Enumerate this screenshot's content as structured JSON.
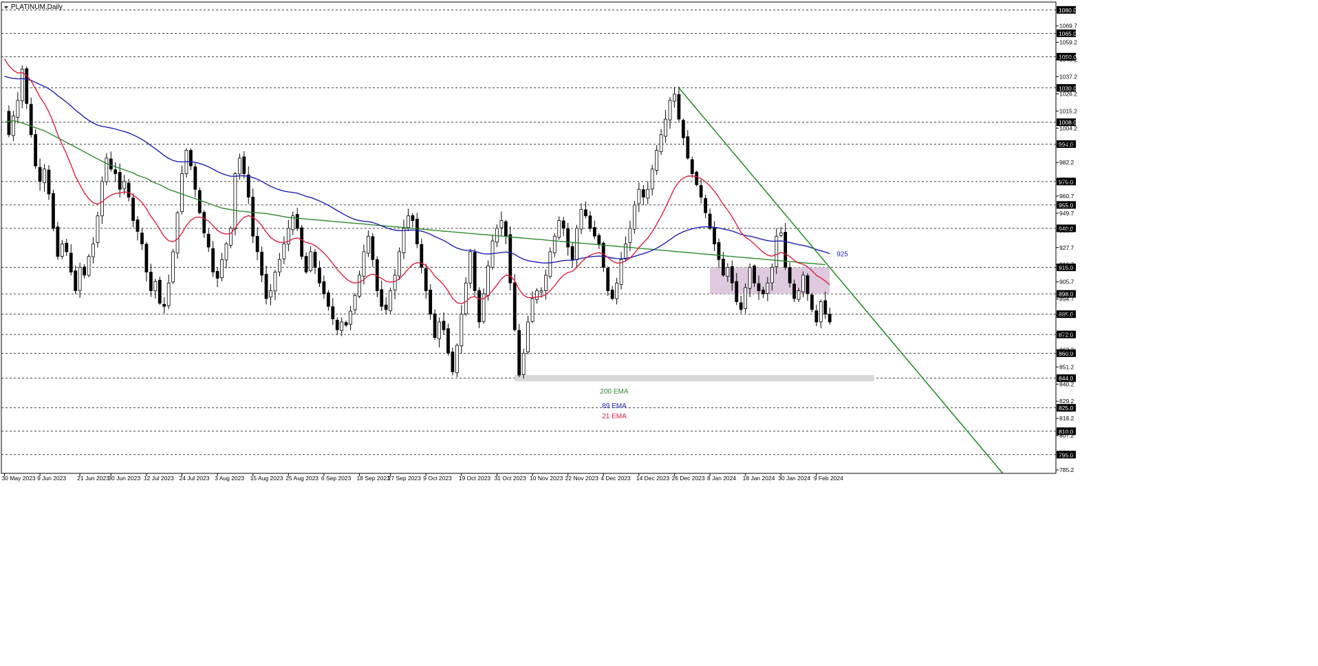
{
  "chart_data": {
    "type": "candlestick",
    "title": "PLATINUM,Daily",
    "y_axis_ticks": [
      1069.7,
      1059.2,
      1048.2,
      1037.2,
      1026.2,
      1015.2,
      1004.2,
      993.2,
      982.2,
      971.2,
      960.7,
      949.7,
      938.7,
      927.7,
      916.7,
      905.7,
      894.7,
      884.2,
      873.2,
      862.2,
      851.2,
      840.2,
      829.2,
      818.2,
      807.2,
      796.2,
      785.2
    ],
    "ylim": [
      783,
      1085
    ],
    "price_levels": [
      1080.0,
      1065.0,
      1050.0,
      1030.0,
      1008.0,
      994.0,
      970.0,
      955.0,
      940.0,
      915.0,
      898.0,
      885.0,
      872.0,
      860.0,
      844.0,
      825.0,
      810.0,
      795.0
    ],
    "x_labels": [
      {
        "label": "30 May 2023",
        "index": 0
      },
      {
        "label": "9 Jun 2023",
        "index": 8
      },
      {
        "label": "21 Jun 2023",
        "index": 17
      },
      {
        "label": "30 Jun 2023",
        "index": 24
      },
      {
        "label": "12 Jul 2023",
        "index": 32
      },
      {
        "label": "24 Jul 2023",
        "index": 40
      },
      {
        "label": "3 Aug 2023",
        "index": 48
      },
      {
        "label": "15 Aug 2023",
        "index": 56
      },
      {
        "label": "25 Aug 2023",
        "index": 64
      },
      {
        "label": "6 Sep 2023",
        "index": 72
      },
      {
        "label": "18 Sep 2023",
        "index": 80
      },
      {
        "label": "27 Sep 2023",
        "index": 87
      },
      {
        "label": "9 Oct 2023",
        "index": 95
      },
      {
        "label": "19 Oct 2023",
        "index": 103
      },
      {
        "label": "31 Oct 2023",
        "index": 111
      },
      {
        "label": "10 Nov 2023",
        "index": 119
      },
      {
        "label": "22 Nov 2023",
        "index": 127
      },
      {
        "label": "4 Dec 2023",
        "index": 135
      },
      {
        "label": "14 Dec 2023",
        "index": 143
      },
      {
        "label": "26 Dec 2023",
        "index": 151
      },
      {
        "label": "8 Jan 2024",
        "index": 159
      },
      {
        "label": "18 Jan 2024",
        "index": 167
      },
      {
        "label": "30 Jan 2024",
        "index": 175
      },
      {
        "label": "9 Feb 2024",
        "index": 183
      }
    ],
    "close_path": [
      1015,
      1000,
      1012,
      1022,
      1042,
      1020,
      1000,
      980,
      970,
      978,
      962,
      940,
      922,
      930,
      925,
      912,
      900,
      915,
      910,
      922,
      930,
      948,
      970,
      985,
      978,
      975,
      965,
      970,
      960,
      945,
      938,
      930,
      912,
      900,
      906,
      892,
      890,
      905,
      925,
      950,
      975,
      990,
      980,
      965,
      950,
      937,
      928,
      912,
      908,
      920,
      930,
      940,
      975,
      985,
      975,
      960,
      935,
      925,
      910,
      895,
      900,
      912,
      920,
      930,
      940,
      948,
      940,
      922,
      912,
      925,
      915,
      905,
      898,
      890,
      882,
      875,
      880,
      878,
      887,
      897,
      910,
      925,
      935,
      920,
      900,
      890,
      888,
      900,
      910,
      925,
      940,
      948,
      945,
      930,
      915,
      900,
      885,
      870,
      880,
      875,
      860,
      848,
      865,
      885,
      905,
      925,
      900,
      880,
      898,
      916,
      932,
      940,
      945,
      935,
      905,
      875,
      846,
      860,
      880,
      895,
      900,
      900,
      910,
      925,
      935,
      945,
      940,
      928,
      920,
      940,
      952,
      948,
      940,
      935,
      930,
      915,
      900,
      895,
      905,
      920,
      930,
      940,
      955,
      965,
      960,
      965,
      978,
      990,
      1000,
      1010,
      1022,
      1026,
      1010,
      998,
      985,
      975,
      968,
      960,
      950,
      940,
      930,
      920,
      910,
      915,
      905,
      893,
      888,
      902,
      915,
      905,
      900,
      898,
      905,
      915,
      935,
      937,
      915,
      905,
      895,
      900,
      910,
      898,
      888,
      880,
      893,
      885,
      880
    ],
    "series": [
      {
        "name": "200 EMA",
        "color": "#2e8b2e",
        "values": [
          1008,
          1008.5,
          1009,
          1008.5,
          1007.5,
          1006.5,
          1005.5,
          1004.5,
          1003.5,
          1002.5,
          1001,
          999.5,
          998,
          996.5,
          995,
          993.5,
          992,
          990.5,
          989,
          987.5,
          986,
          984.5,
          983,
          981.5,
          980.5,
          979.5,
          978.5,
          977.5,
          976.5,
          975.5,
          974,
          973,
          972,
          970.5,
          969,
          968,
          966.5,
          965,
          964,
          963,
          962,
          961,
          960,
          959,
          958,
          957,
          956,
          955,
          954,
          953,
          952.5,
          952,
          951.5,
          951,
          950.8,
          950.5,
          950.2,
          950,
          949.7,
          949.5,
          949,
          948.5,
          948,
          947.5,
          947,
          946.7,
          946.5,
          946.2,
          946,
          945.7,
          945.5,
          945.2,
          945,
          944.7,
          944.5,
          944.2,
          944,
          943.7,
          943.5,
          943.2,
          943,
          942.8,
          942.5,
          942.2,
          942,
          941.8,
          941.5,
          941.3,
          941,
          940.8,
          940.5,
          940.3,
          940,
          939.8,
          939.5,
          939.3,
          939,
          938.7,
          938.5,
          938.2,
          938,
          937.7,
          937.5,
          937.2,
          937,
          936.7,
          936.5,
          936.2,
          936,
          935.8,
          935.5,
          935.3,
          935,
          934.8,
          934.5,
          934.2,
          934,
          933.7,
          933.5,
          933.2,
          933,
          932.8,
          932.5,
          932.2,
          932,
          931.7,
          931.5,
          931.2,
          931,
          930.7,
          930.5,
          930.2,
          930,
          929.8,
          929.5,
          929.2,
          929,
          928.8,
          928.5,
          928.2,
          928,
          927.8,
          927.5,
          927.2,
          927,
          926.8,
          926.5,
          926.2,
          926,
          925.8,
          925.5,
          925.2,
          925,
          924.8,
          924.5,
          924.2,
          924,
          923.7,
          923.5,
          923.2,
          923,
          922.7,
          922.5,
          922.2,
          922,
          921.7,
          921.5,
          921.2,
          921,
          920.7,
          920.5,
          920.2,
          920,
          919.7,
          919.5,
          919.2,
          919,
          918.7,
          918.5,
          918.2,
          918,
          917.7,
          917.5,
          917.2,
          917,
          916.7
        ]
      },
      {
        "name": "89 EMA",
        "color": "#1e1eb4",
        "values": []
      },
      {
        "name": "21 EMA",
        "color": "#dc1e3c",
        "values": []
      }
    ],
    "ema_labels": [
      {
        "text": "200 EMA",
        "color": "#2e8b2e"
      },
      {
        "text": "89 EMA",
        "color": "#1e1eb4"
      },
      {
        "text": "21 EMA",
        "color": "#dc1e3c"
      }
    ],
    "annotations": {
      "ema89_end_label": "925",
      "resistance_zone": {
        "from_index": 159,
        "to_index": 186,
        "low": 898,
        "high": 915,
        "color": "#d8bfd8"
      },
      "support_zone": {
        "from_index": 115,
        "to_index": 196,
        "low": 842,
        "high": 846,
        "color": "#d9d9d9"
      },
      "trendline": {
        "from_index": 152,
        "from_price": 1030,
        "to_index": 225,
        "to_price": 783,
        "color": "#1a8c1a"
      }
    },
    "grid": "horizontal-dashed",
    "legend_placement": "center-bottom"
  }
}
